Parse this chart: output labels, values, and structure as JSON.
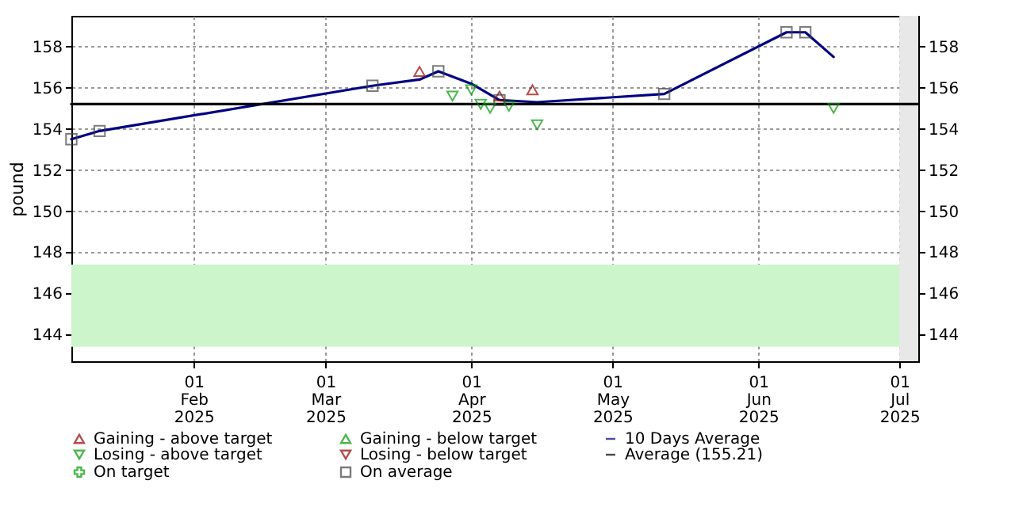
{
  "chart_data": {
    "type": "scatter",
    "ylabel": "pound",
    "xlim": [
      "2025-01-06",
      "2025-07-05"
    ],
    "xticks": [
      {
        "value": "2025-02-01",
        "label": "01\nFeb\n2025"
      },
      {
        "value": "2025-03-01",
        "label": "01\nMar\n2025"
      },
      {
        "value": "2025-04-01",
        "label": "01\nApr\n2025"
      },
      {
        "value": "2025-05-01",
        "label": "01\nMay\n2025"
      },
      {
        "value": "2025-06-01",
        "label": "01\nJun\n2025"
      },
      {
        "value": "2025-07-01",
        "label": "01\nJul\n2025"
      }
    ],
    "ylim": [
      142.7,
      159.5
    ],
    "yticks": [
      144,
      146,
      148,
      150,
      152,
      154,
      156,
      158
    ],
    "y2lim": [
      142.7,
      159.5
    ],
    "y2ticks": [
      144,
      146,
      148,
      150,
      152,
      154,
      156,
      158
    ],
    "grid": true,
    "legend": "bottom",
    "series": [
      {
        "name": "Gaining - above target",
        "type": "scatter",
        "marker": "triangle",
        "color": "#990000",
        "x": [
          "2025-03-21",
          "2025-04-07",
          "2025-04-14"
        ],
        "values": [
          156.8,
          155.6,
          155.9
        ]
      },
      {
        "name": "Gaining - below target",
        "type": "scatter",
        "marker": "triangle",
        "color": "#009900"
      },
      {
        "name": "10 Days Average",
        "type": "line",
        "marker": "none",
        "color": "#000080",
        "x": [
          "2025-01-06",
          "2025-01-12",
          "2025-03-11",
          "2025-03-21",
          "2025-03-25",
          "2025-04-01",
          "2025-04-07",
          "2025-04-15",
          "2025-05-12",
          "2025-06-07",
          "2025-06-11",
          "2025-06-17"
        ],
        "values": [
          153.5,
          153.9,
          156.1,
          156.4,
          156.8,
          156.2,
          155.4,
          155.3,
          155.7,
          158.7,
          158.7,
          157.5
        ]
      },
      {
        "name": "Losing - above target",
        "type": "scatter",
        "marker": "triangle-down",
        "color": "#009900",
        "x": [
          "2025-03-28",
          "2025-04-01",
          "2025-04-03",
          "2025-04-05",
          "2025-04-09",
          "2025-04-15",
          "2025-06-17"
        ],
        "values": [
          155.6,
          155.9,
          155.2,
          155.0,
          155.1,
          154.2,
          155.0
        ]
      },
      {
        "name": "Losing - below target",
        "type": "scatter",
        "marker": "triangle-down",
        "color": "#990000"
      },
      {
        "name": "Average (155.21)",
        "type": "line",
        "marker": "none",
        "color": "#000000",
        "x": [
          "2025-01-06",
          "2025-07-05"
        ],
        "values": [
          155.21,
          155.21
        ]
      },
      {
        "name": "On target",
        "type": "scatter",
        "marker": "cross",
        "color": "#009900"
      },
      {
        "name": "On average",
        "type": "scatter",
        "marker": "square",
        "color": "#444444",
        "x": [
          "2025-01-06",
          "2025-01-12",
          "2025-03-11",
          "2025-03-25",
          "2025-04-07",
          "2025-05-12",
          "2025-06-07",
          "2025-06-11"
        ],
        "values": [
          153.5,
          153.9,
          156.1,
          156.8,
          155.4,
          155.7,
          158.7,
          158.7
        ]
      }
    ],
    "bands": [
      {
        "axis": "y",
        "from": 143.4,
        "to": 147.4,
        "color": "#ccf5cc"
      },
      {
        "axis": "x",
        "from": "2025-07-01",
        "to": "2025-07-05",
        "color": "#e8e8e8"
      }
    ]
  }
}
